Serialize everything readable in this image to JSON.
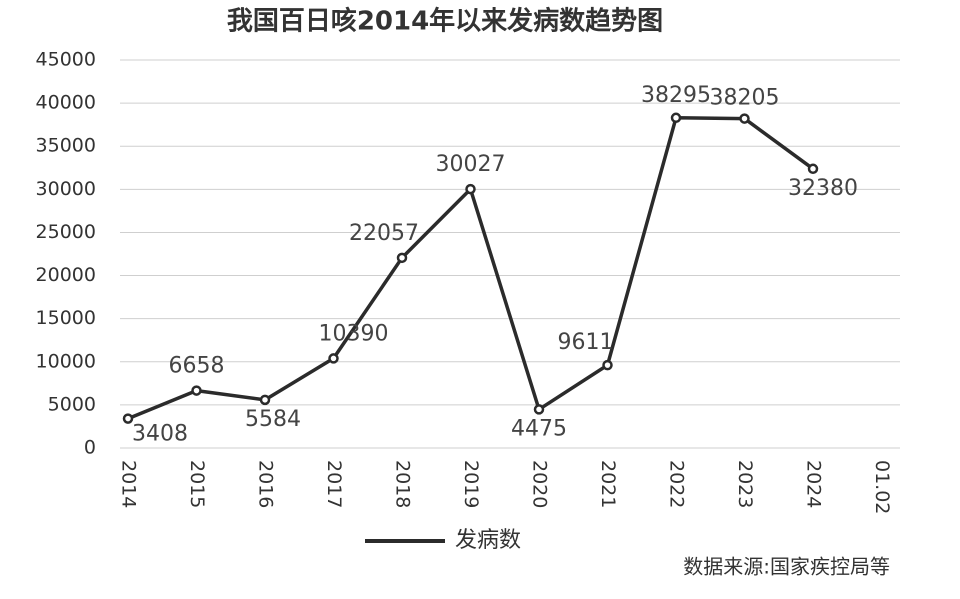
{
  "chart_data": {
    "type": "line",
    "title": "我国百日咳2014年以来发病数趋势图",
    "categories": [
      "2014",
      "2015",
      "2016",
      "2017",
      "2018",
      "2019",
      "2020",
      "2021",
      "2022",
      "2023",
      "2024",
      "01.02"
    ],
    "series": [
      {
        "name": "发病数",
        "color": "#2b2b2b",
        "values": [
          3408,
          6658,
          5584,
          10390,
          22057,
          30027,
          4475,
          9611,
          38295,
          38205,
          32380,
          null
        ]
      }
    ],
    "ylim": [
      0,
      45000
    ],
    "yticks": [
      0,
      5000,
      10000,
      15000,
      20000,
      25000,
      30000,
      35000,
      40000,
      45000
    ],
    "grid": true,
    "legend": "bottom",
    "source": "数据来源:国家疾控局等"
  }
}
